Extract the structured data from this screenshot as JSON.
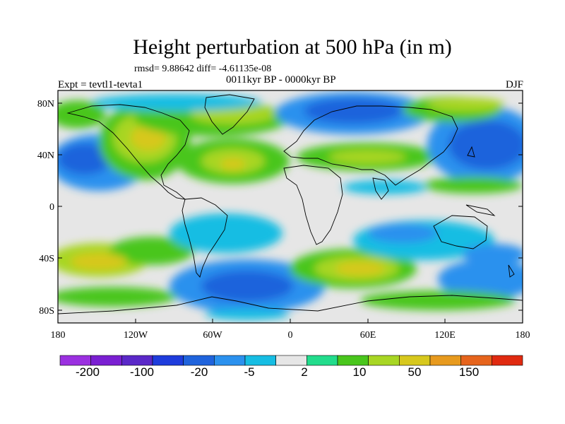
{
  "title": "Height perturbation at 500 hPa (in m)",
  "stats": "rmsd= 9.88642 diff= -4.61135e-08",
  "period": "0011kyr BP - 0000kyr BP",
  "experiment": "Expt = tevtl1-tevta1",
  "season": "DJF",
  "lat_ticks": [
    "80N",
    "40N",
    "0",
    "40S",
    "80S"
  ],
  "lon_ticks": [
    "180",
    "120W",
    "60W",
    "0",
    "60E",
    "120E",
    "180"
  ],
  "colorbar": {
    "colors": [
      "#9b30e0",
      "#7a1fd2",
      "#5a28c8",
      "#1e3cdc",
      "#1f63dc",
      "#2b91ee",
      "#16bde3",
      "#e6e6e6",
      "#22dc8c",
      "#49c61c",
      "#a8d624",
      "#d7c81d",
      "#e79a1e",
      "#e6641c",
      "#e02a10"
    ],
    "labels": [
      "-200",
      "-100",
      "-20",
      "-5",
      "2",
      "10",
      "50",
      "150"
    ]
  }
}
